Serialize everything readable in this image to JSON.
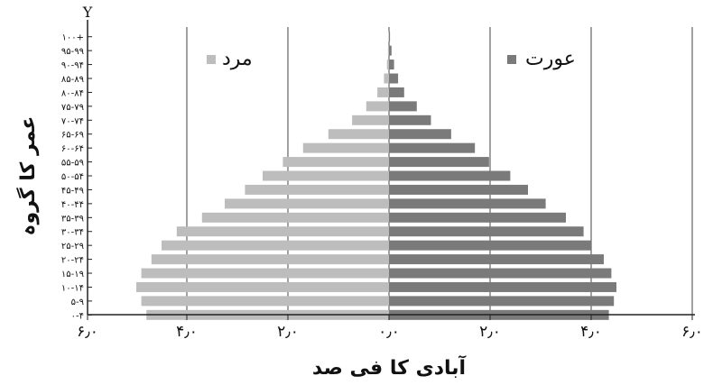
{
  "chart_data": {
    "type": "bar",
    "orientation": "horizontal",
    "layout": "population-pyramid",
    "y_axis_marker": "Y",
    "ylabel": "عمر کا گروہ",
    "xlabel": "آبادی کا فی صد",
    "categories": [
      "۰-۴",
      "۵-۹",
      "۱۰-۱۴",
      "۱۵-۱۹",
      "۲۰-۲۴",
      "۲۵-۲۹",
      "۳۰-۳۴",
      "۳۵-۳۹",
      "۴۰-۴۴",
      "۴۵-۴۹",
      "۵۰-۵۴",
      "۵۵-۵۹",
      "۶۰-۶۴",
      "۶۵-۶۹",
      "۷۰-۷۴",
      "۷۵-۷۹",
      "۸۰-۸۴",
      "۸۵-۸۹",
      "۹۰-۹۴",
      "۹۵-۹۹",
      "۱۰۰+"
    ],
    "series": [
      {
        "name": "مرد",
        "side": "left",
        "color": "#bdbdbd",
        "values": [
          4.8,
          4.9,
          5.0,
          4.9,
          4.7,
          4.5,
          4.2,
          3.7,
          3.25,
          2.85,
          2.5,
          2.1,
          1.7,
          1.2,
          0.73,
          0.45,
          0.23,
          0.1,
          0.04,
          0.02,
          0.01
        ]
      },
      {
        "name": "عورت",
        "side": "right",
        "color": "#7a7a7a",
        "values": [
          4.35,
          4.45,
          4.5,
          4.4,
          4.25,
          4.0,
          3.85,
          3.5,
          3.1,
          2.75,
          2.4,
          1.98,
          1.7,
          1.23,
          0.83,
          0.55,
          0.3,
          0.18,
          0.1,
          0.05,
          0.02
        ]
      }
    ],
    "xticks": [
      {
        "value": -6,
        "label": "۶٫۰"
      },
      {
        "value": -4,
        "label": "۴٫۰"
      },
      {
        "value": -2,
        "label": "۲٫۰"
      },
      {
        "value": 0,
        "label": "۰٫۰"
      },
      {
        "value": 2,
        "label": "۲٫۰"
      },
      {
        "value": 4,
        "label": "۴٫۰"
      },
      {
        "value": 6,
        "label": "۶٫۰"
      }
    ],
    "xlim": [
      -6,
      6
    ],
    "grid": "vertical",
    "legend": {
      "male_position": "top-left",
      "female_position": "top-right"
    }
  },
  "colors": {
    "male": "#bdbdbd",
    "female": "#7a7a7a",
    "axis": "#222222",
    "grid": "#444444"
  }
}
